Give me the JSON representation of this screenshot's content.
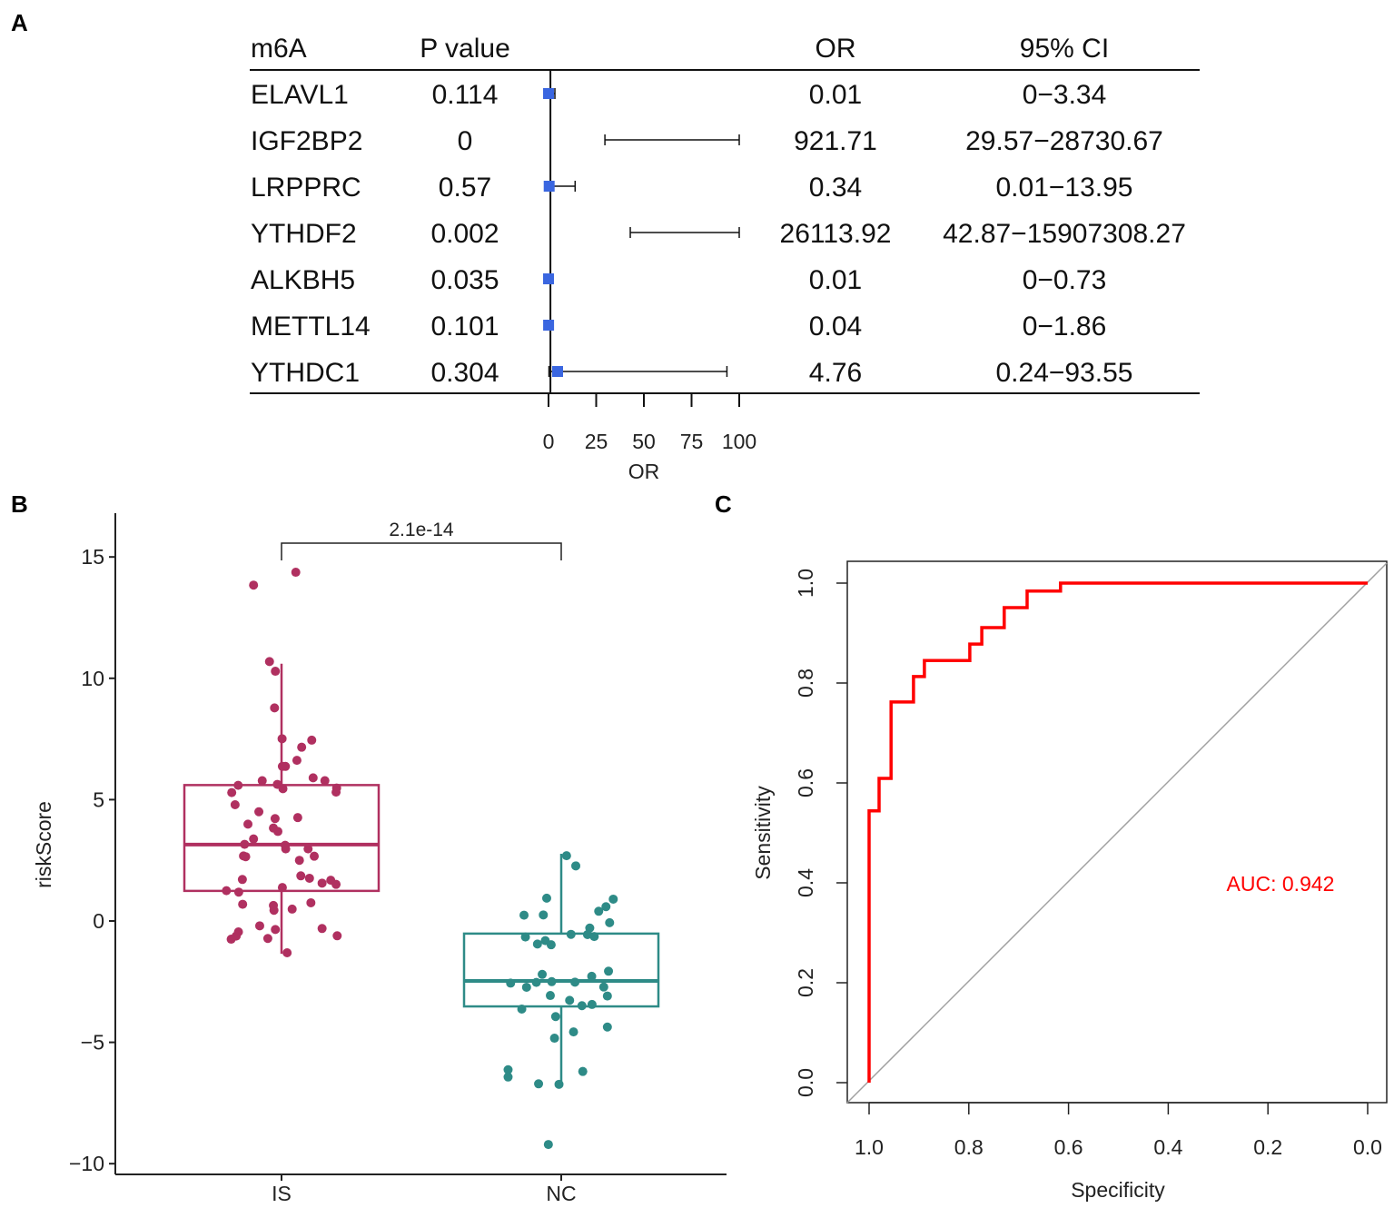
{
  "panel_labels": {
    "a": "A",
    "b": "B",
    "c": "C"
  },
  "chart_data": [
    {
      "type": "table",
      "subtype": "forest",
      "columns": [
        "m6A",
        "P value",
        "OR",
        "95% CI"
      ],
      "rows": [
        {
          "gene": "ELAVL1",
          "p": "0.114",
          "or": "0.01",
          "ci": "0−3.34",
          "or_value": 0.01,
          "ci_low": 0,
          "ci_high": 3.34
        },
        {
          "gene": "IGF2BP2",
          "p": "0",
          "or": "921.71",
          "ci": "29.57−28730.67",
          "or_value": 921.71,
          "ci_low": 29.57,
          "ci_high": 28730.67
        },
        {
          "gene": "LRPPRC",
          "p": "0.57",
          "or": "0.34",
          "ci": "0.01−13.95",
          "or_value": 0.34,
          "ci_low": 0.01,
          "ci_high": 13.95
        },
        {
          "gene": "YTHDF2",
          "p": "0.002",
          "or": "26113.92",
          "ci": "42.87−15907308.27",
          "or_value": 26113.92,
          "ci_low": 42.87,
          "ci_high": 15907308.27
        },
        {
          "gene": "ALKBH5",
          "p": "0.035",
          "or": "0.01",
          "ci": "0−0.73",
          "or_value": 0.01,
          "ci_low": 0,
          "ci_high": 0.73
        },
        {
          "gene": "METTL14",
          "p": "0.101",
          "or": "0.04",
          "ci": "0−1.86",
          "or_value": 0.04,
          "ci_low": 0,
          "ci_high": 1.86
        },
        {
          "gene": "YTHDC1",
          "p": "0.304",
          "or": "4.76",
          "ci": "0.24−93.55",
          "or_value": 4.76,
          "ci_low": 0.24,
          "ci_high": 93.55
        }
      ],
      "xlabel": "OR",
      "xlim": [
        0,
        100
      ],
      "xticks": [
        "0",
        "25",
        "50",
        "75",
        "100"
      ],
      "reference_line": 1,
      "marker_color": "#3a66e0"
    },
    {
      "type": "box",
      "ylabel": "riskScore",
      "ylim": [
        -10.3,
        16.8
      ],
      "yticks": [
        15,
        10,
        5,
        0,
        -5,
        -10
      ],
      "ytick_labels": [
        "15",
        "10",
        "5",
        "0",
        "−5",
        "−10"
      ],
      "categories": [
        "IS",
        "NC"
      ],
      "annotation": "2.1e-14",
      "groups": [
        {
          "name": "IS",
          "color": "#b03060",
          "q1": 1.24,
          "median": 3.15,
          "q3": 5.6,
          "whisker_low": -1.35,
          "whisker_high": 10.6,
          "points": [
            [
              0.051,
              14.37
            ],
            [
              -0.1,
              13.84
            ],
            [
              -0.043,
              10.69
            ],
            [
              -0.022,
              10.29
            ],
            [
              -0.025,
              8.78
            ],
            [
              0.002,
              7.51
            ],
            [
              0.108,
              7.45
            ],
            [
              0.072,
              7.16
            ],
            [
              0.055,
              6.62
            ],
            [
              0.003,
              6.37
            ],
            [
              0.014,
              6.37
            ],
            [
              0.113,
              5.9
            ],
            [
              0.155,
              5.78
            ],
            [
              -0.069,
              5.78
            ],
            [
              -0.155,
              5.59
            ],
            [
              -0.015,
              5.63
            ],
            [
              0.005,
              5.45
            ],
            [
              0.197,
              5.48
            ],
            [
              0.195,
              5.31
            ],
            [
              -0.178,
              5.29
            ],
            [
              -0.166,
              4.79
            ],
            [
              -0.081,
              4.5
            ],
            [
              -0.023,
              4.22
            ],
            [
              0.058,
              4.26
            ],
            [
              -0.12,
              3.99
            ],
            [
              -0.029,
              3.83
            ],
            [
              -0.013,
              3.69
            ],
            [
              -0.1,
              3.38
            ],
            [
              -0.132,
              3.16
            ],
            [
              0.013,
              3.12
            ],
            [
              0.015,
              2.97
            ],
            [
              0.095,
              2.97
            ],
            [
              -0.136,
              2.68
            ],
            [
              -0.128,
              2.65
            ],
            [
              0.117,
              2.67
            ],
            [
              0.064,
              2.5
            ],
            [
              -0.14,
              1.71
            ],
            [
              0.069,
              1.86
            ],
            [
              0.1,
              1.76
            ],
            [
              0.145,
              1.56
            ],
            [
              0.176,
              1.68
            ],
            [
              0.195,
              1.51
            ],
            [
              0.003,
              1.38
            ],
            [
              -0.197,
              1.25
            ],
            [
              -0.153,
              1.19
            ],
            [
              -0.139,
              0.69
            ],
            [
              0.105,
              0.75
            ],
            [
              -0.029,
              0.64
            ],
            [
              -0.027,
              0.44
            ],
            [
              0.038,
              0.49
            ],
            [
              -0.078,
              -0.2
            ],
            [
              -0.154,
              -0.45
            ],
            [
              -0.162,
              -0.62
            ],
            [
              -0.18,
              -0.75
            ],
            [
              -0.022,
              -0.35
            ],
            [
              0.145,
              -0.31
            ],
            [
              -0.049,
              -0.72
            ],
            [
              0.199,
              -0.61
            ],
            [
              0.02,
              -1.31
            ]
          ]
        },
        {
          "name": "NC",
          "color": "#2e8b87",
          "q1": -3.52,
          "median": -2.47,
          "q3": -0.52,
          "whisker_low": -6.74,
          "whisker_high": 2.77,
          "points": [
            [
              0.019,
              2.69
            ],
            [
              0.052,
              2.27
            ],
            [
              -0.052,
              0.94
            ],
            [
              0.186,
              0.9
            ],
            [
              0.16,
              0.59
            ],
            [
              0.134,
              0.4
            ],
            [
              -0.133,
              0.24
            ],
            [
              -0.064,
              0.25
            ],
            [
              0.173,
              -0.07
            ],
            [
              0.102,
              -0.29
            ],
            [
              0.094,
              -0.56
            ],
            [
              0.118,
              -0.64
            ],
            [
              0.035,
              -0.55
            ],
            [
              -0.128,
              -0.66
            ],
            [
              -0.057,
              -0.81
            ],
            [
              -0.085,
              -0.95
            ],
            [
              -0.036,
              -0.98
            ],
            [
              0.169,
              -2.07
            ],
            [
              -0.068,
              -2.2
            ],
            [
              0.109,
              -2.28
            ],
            [
              -0.181,
              -2.56
            ],
            [
              -0.089,
              -2.53
            ],
            [
              -0.034,
              -2.5
            ],
            [
              0.049,
              -2.52
            ],
            [
              -0.124,
              -2.73
            ],
            [
              0.152,
              -2.72
            ],
            [
              0.165,
              -3.09
            ],
            [
              -0.039,
              -3.07
            ],
            [
              0.03,
              -3.27
            ],
            [
              0.074,
              -3.49
            ],
            [
              0.11,
              -3.44
            ],
            [
              -0.141,
              -3.63
            ],
            [
              -0.02,
              -3.94
            ],
            [
              0.165,
              -4.37
            ],
            [
              0.044,
              -4.57
            ],
            [
              -0.024,
              -4.83
            ],
            [
              -0.19,
              -6.13
            ],
            [
              -0.19,
              -6.43
            ],
            [
              0.077,
              -6.2
            ],
            [
              -0.081,
              -6.71
            ],
            [
              -0.008,
              -6.73
            ],
            [
              -0.046,
              -9.21
            ]
          ]
        }
      ]
    },
    {
      "type": "line",
      "subtype": "roc",
      "xlabel": "Specificity",
      "ylabel": "Sensitivity",
      "xlim": [
        1.04,
        -0.04
      ],
      "ylim": [
        -0.04,
        1.04
      ],
      "xticks": [
        "1.0",
        "0.8",
        "0.6",
        "0.4",
        "0.2",
        "0.0"
      ],
      "yticks": [
        "0.0",
        "0.2",
        "0.4",
        "0.6",
        "0.8",
        "1.0"
      ],
      "annotation": "AUC: 0.942",
      "line_color": "#ff0000",
      "diagonal_color": "#a0a0a0",
      "curve": [
        [
          1.0,
          0.0
        ],
        [
          1.0,
          0.544
        ],
        [
          0.98,
          0.544
        ],
        [
          0.98,
          0.609
        ],
        [
          0.956,
          0.609
        ],
        [
          0.956,
          0.762
        ],
        [
          0.911,
          0.762
        ],
        [
          0.911,
          0.813
        ],
        [
          0.889,
          0.813
        ],
        [
          0.889,
          0.845
        ],
        [
          0.798,
          0.845
        ],
        [
          0.798,
          0.878
        ],
        [
          0.774,
          0.878
        ],
        [
          0.774,
          0.911
        ],
        [
          0.729,
          0.911
        ],
        [
          0.729,
          0.951
        ],
        [
          0.683,
          0.951
        ],
        [
          0.683,
          0.984
        ],
        [
          0.616,
          0.984
        ],
        [
          0.616,
          1.0
        ],
        [
          0.0,
          1.0
        ]
      ]
    }
  ]
}
